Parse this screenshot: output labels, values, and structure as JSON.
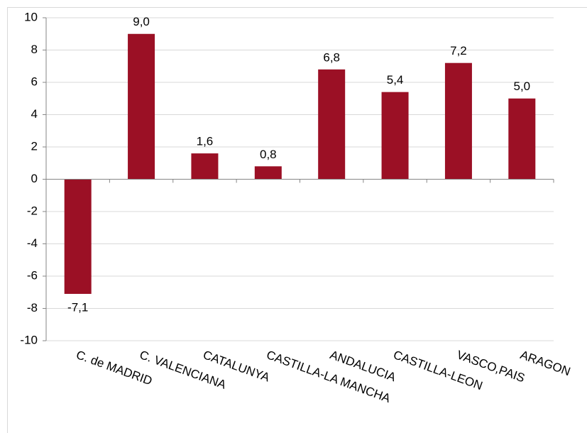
{
  "chart_data": {
    "type": "bar",
    "categories": [
      "C. de MADRID",
      "C. VALENCIANA",
      "CATALUNYA",
      "CASTILLA-LA MANCHA",
      "ANDALUCIA",
      "CASTILLA-LEON",
      "VASCO,PAIS",
      "ARAGON"
    ],
    "values": [
      -7.1,
      9.0,
      1.6,
      0.8,
      6.8,
      5.4,
      7.2,
      5.0
    ],
    "value_labels": [
      "-7,1",
      "9,0",
      "1,6",
      "0,8",
      "6,8",
      "5,4",
      "7,2",
      "5,0"
    ],
    "color": "#9b1025",
    "ylim": [
      -10,
      10
    ],
    "yticks": [
      -10,
      -8,
      -6,
      -4,
      -2,
      0,
      2,
      4,
      6,
      8,
      10
    ],
    "grid": true
  }
}
